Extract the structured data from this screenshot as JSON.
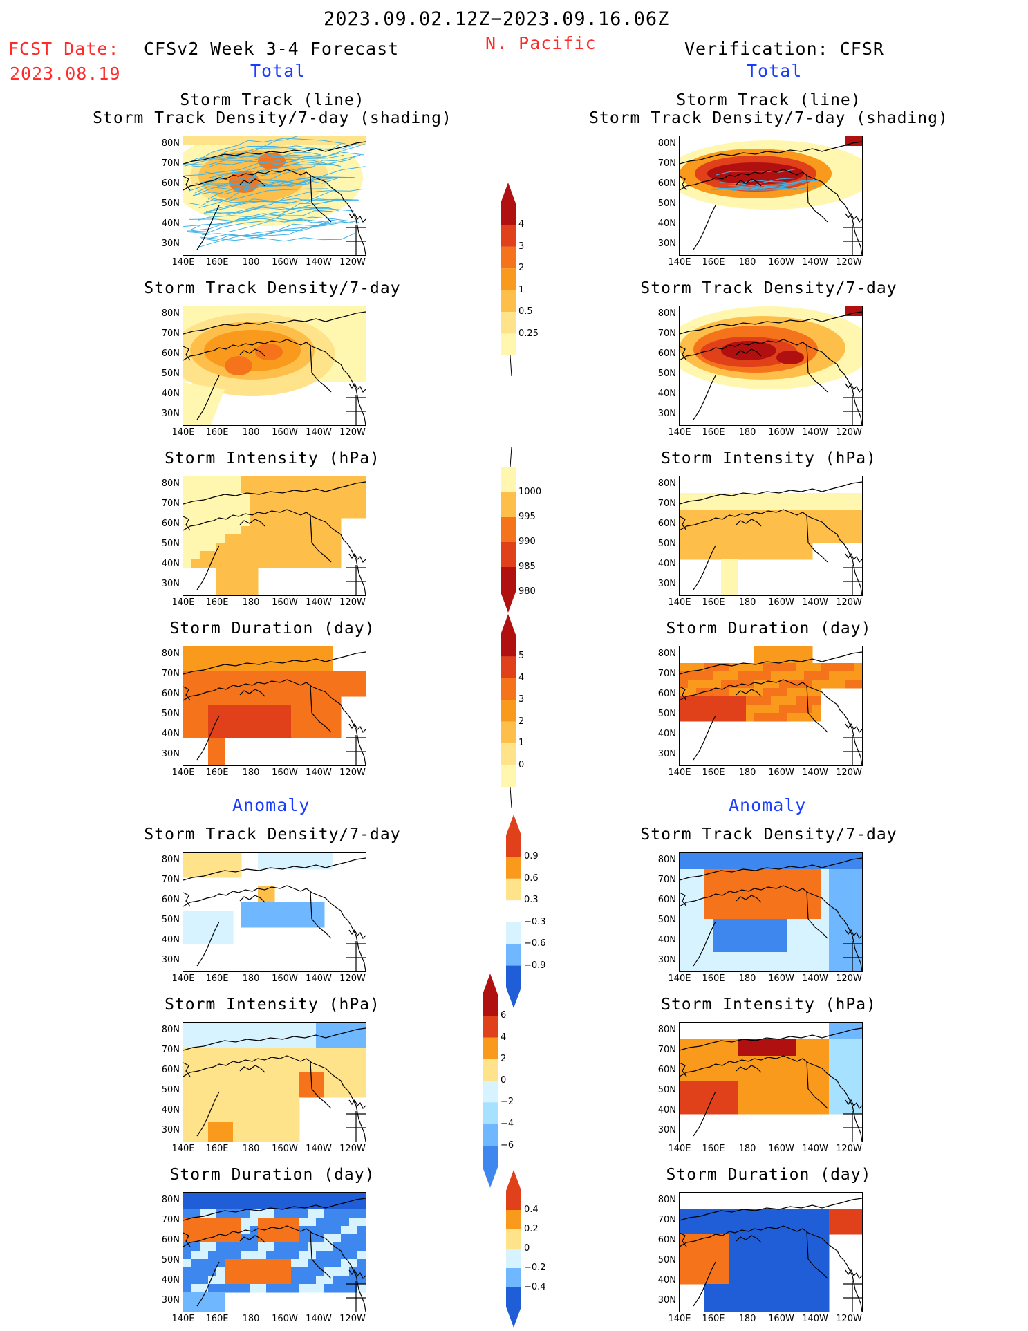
{
  "header": {
    "date_range": "2023.09.02.12Z−2023.09.16.06Z",
    "fcst_date_label": "FCST Date:",
    "fcst_date_value": "2023.08.19",
    "forecast_title": "CFSv2 Week 3-4 Forecast",
    "region": "N. Pacific",
    "verification_title": "Verification: CFSR",
    "left_total": "Total",
    "right_total": "Total",
    "left_anomaly": "Anomaly",
    "right_anomaly": "Anomaly"
  },
  "panels": {
    "track_line": "Storm Track (line)",
    "track_shading": "Storm Track Density/7-day (shading)",
    "density": "Storm Track Density/7-day",
    "intensity": "Storm Intensity (hPa)",
    "duration": "Storm Duration (day)"
  },
  "axes": {
    "lat_labels": [
      "80N",
      "70N",
      "60N",
      "50N",
      "40N",
      "30N"
    ],
    "lon_labels": [
      "140E",
      "160E",
      "180",
      "160W",
      "140W",
      "120W"
    ]
  },
  "colorbars": {
    "density_total": [
      "4",
      "3",
      "2",
      "1",
      "0.5",
      "0.25"
    ],
    "intensity_total": [
      "1000",
      "995",
      "990",
      "985",
      "980"
    ],
    "duration_total": [
      "5",
      "4",
      "3",
      "2",
      "1",
      "0"
    ],
    "density_anom": [
      "0.9",
      "0.6",
      "0.3",
      "−0.3",
      "−0.6",
      "−0.9"
    ],
    "intensity_anom": [
      "6",
      "4",
      "2",
      "0",
      "−2",
      "−4",
      "−6"
    ],
    "duration_anom": [
      "0.4",
      "0.2",
      "0",
      "−0.2",
      "−0.4"
    ]
  },
  "colors": {
    "title_red": "#ff2a2a",
    "label_blue": "#1a3cff",
    "warm": [
      "#fff7b0",
      "#ffe38a",
      "#fdbf4a",
      "#f99a1c",
      "#f5731b",
      "#e0401a",
      "#b01010"
    ],
    "cool": [
      "#d6f3ff",
      "#a6e1ff",
      "#6fb8ff",
      "#3e87ef",
      "#1f5ed6"
    ]
  }
}
